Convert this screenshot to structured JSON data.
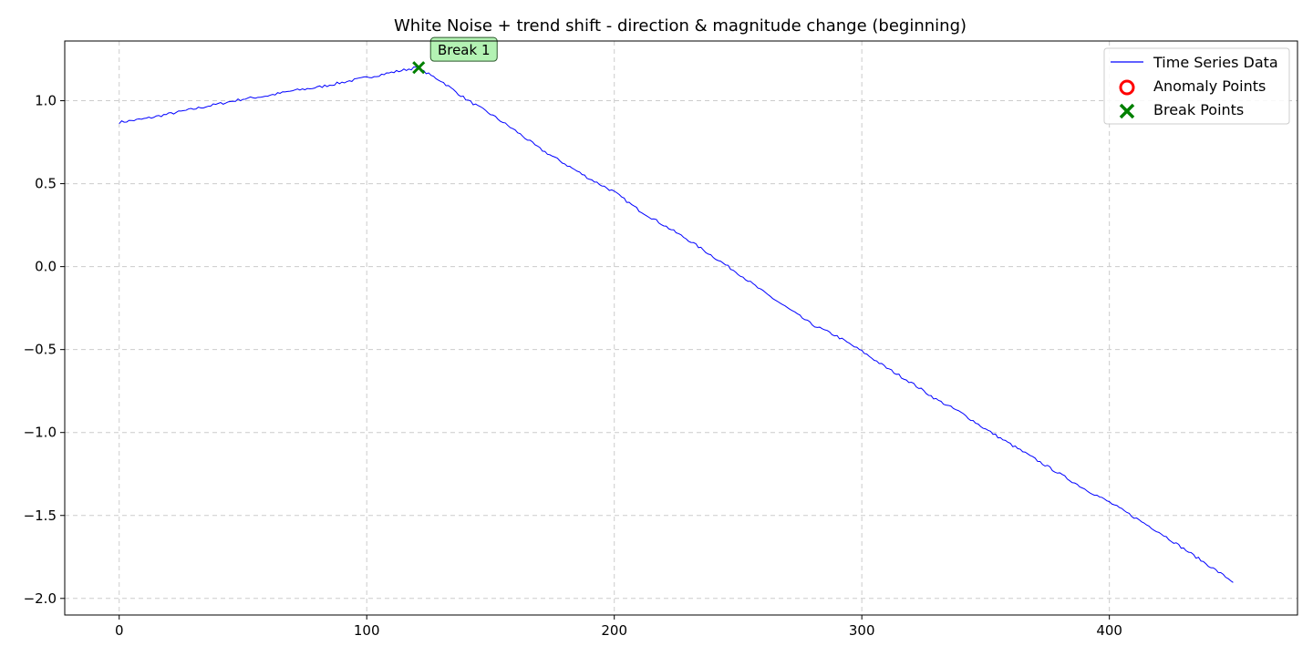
{
  "chart_data": {
    "type": "line",
    "title": "White Noise + trend shift - direction & magnitude change (beginning)",
    "xlabel": "",
    "ylabel": "",
    "xlim": [
      -22,
      476
    ],
    "ylim": [
      -2.1,
      1.36
    ],
    "xticks": [
      0,
      100,
      200,
      300,
      400
    ],
    "xtick_labels": [
      "0",
      "100",
      "200",
      "300",
      "400"
    ],
    "yticks": [
      1.0,
      0.5,
      0.0,
      -0.5,
      -1.0,
      -1.5,
      -2.0
    ],
    "ytick_labels": [
      "1.0",
      "0.5",
      "0.0",
      "−0.5",
      "−1.0",
      "−1.5",
      "−2.0"
    ],
    "grid": true,
    "legend_position": "top-right",
    "series": [
      {
        "name": "Time Series Data",
        "color": "#0000ff",
        "x": [
          0,
          10,
          20,
          30,
          40,
          50,
          60,
          70,
          80,
          90,
          100,
          110,
          120,
          130,
          140,
          150,
          160,
          170,
          180,
          190,
          200,
          210,
          220,
          230,
          240,
          250,
          260,
          270,
          280,
          290,
          300,
          310,
          320,
          330,
          340,
          350,
          360,
          370,
          380,
          390,
          400,
          410,
          420,
          430,
          440,
          450
        ],
        "y": [
          0.87,
          0.89,
          0.92,
          0.95,
          0.98,
          1.01,
          1.03,
          1.06,
          1.08,
          1.11,
          1.14,
          1.17,
          1.2,
          1.12,
          1.01,
          0.92,
          0.82,
          0.71,
          0.62,
          0.53,
          0.45,
          0.34,
          0.25,
          0.16,
          0.06,
          -0.04,
          -0.15,
          -0.25,
          -0.35,
          -0.42,
          -0.51,
          -0.61,
          -0.7,
          -0.8,
          -0.88,
          -0.98,
          -1.07,
          -1.16,
          -1.25,
          -1.34,
          -1.42,
          -1.51,
          -1.6,
          -1.7,
          -1.8,
          -1.9
        ],
        "noise": 0.008,
        "seed": 7
      }
    ],
    "anomaly_points": {
      "name": "Anomaly Points",
      "color": "#ff0000",
      "x": [],
      "y": []
    },
    "break_points": {
      "name": "Break Points",
      "color": "#008000",
      "x": [
        121
      ],
      "y": [
        1.2
      ],
      "labels": [
        "Break 1"
      ]
    }
  }
}
